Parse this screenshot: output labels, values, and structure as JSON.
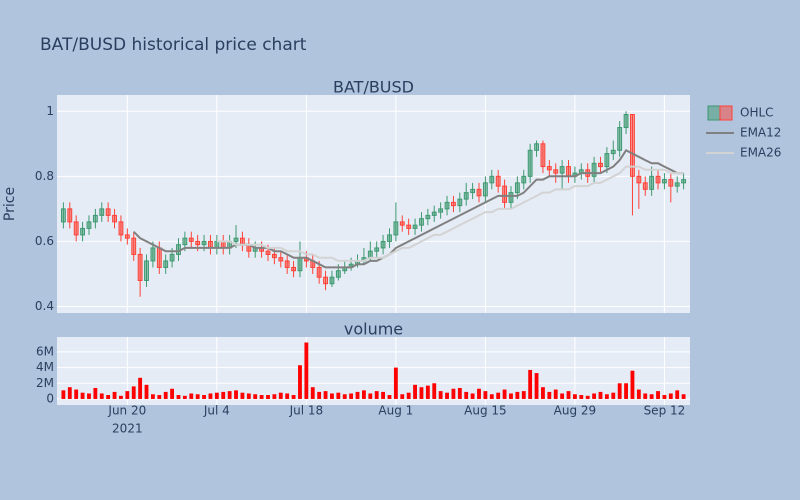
{
  "title": "BAT/BUSD historical price chart",
  "chart_data": [
    {
      "type": "candlestick",
      "title": "BAT/BUSD",
      "ylabel": "Price",
      "name": "OHLC",
      "increasing_color": "#3d9970",
      "decreasing_color": "#ff4136",
      "x": [
        "2021-06-10",
        "2021-06-11",
        "2021-06-12",
        "2021-06-13",
        "2021-06-14",
        "2021-06-15",
        "2021-06-16",
        "2021-06-17",
        "2021-06-18",
        "2021-06-19",
        "2021-06-20",
        "2021-06-21",
        "2021-06-22",
        "2021-06-23",
        "2021-06-24",
        "2021-06-25",
        "2021-06-26",
        "2021-06-27",
        "2021-06-28",
        "2021-06-29",
        "2021-06-30",
        "2021-07-01",
        "2021-07-02",
        "2021-07-03",
        "2021-07-04",
        "2021-07-05",
        "2021-07-06",
        "2021-07-07",
        "2021-07-08",
        "2021-07-09",
        "2021-07-10",
        "2021-07-11",
        "2021-07-12",
        "2021-07-13",
        "2021-07-14",
        "2021-07-15",
        "2021-07-16",
        "2021-07-17",
        "2021-07-18",
        "2021-07-19",
        "2021-07-20",
        "2021-07-21",
        "2021-07-22",
        "2021-07-23",
        "2021-07-24",
        "2021-07-25",
        "2021-07-26",
        "2021-07-27",
        "2021-07-28",
        "2021-07-29",
        "2021-07-30",
        "2021-07-31",
        "2021-08-01",
        "2021-08-02",
        "2021-08-03",
        "2021-08-04",
        "2021-08-05",
        "2021-08-06",
        "2021-08-07",
        "2021-08-08",
        "2021-08-09",
        "2021-08-10",
        "2021-08-11",
        "2021-08-12",
        "2021-08-13",
        "2021-08-14",
        "2021-08-15",
        "2021-08-16",
        "2021-08-17",
        "2021-08-18",
        "2021-08-19",
        "2021-08-20",
        "2021-08-21",
        "2021-08-22",
        "2021-08-23",
        "2021-08-24",
        "2021-08-25",
        "2021-08-26",
        "2021-08-27",
        "2021-08-28",
        "2021-08-29",
        "2021-08-30",
        "2021-08-31",
        "2021-09-01",
        "2021-09-02",
        "2021-09-03",
        "2021-09-04",
        "2021-09-05",
        "2021-09-06",
        "2021-09-07",
        "2021-09-08",
        "2021-09-09",
        "2021-09-10",
        "2021-09-11",
        "2021-09-12",
        "2021-09-13",
        "2021-09-14",
        "2021-09-15"
      ],
      "open": [
        0.66,
        0.7,
        0.66,
        0.62,
        0.64,
        0.66,
        0.68,
        0.7,
        0.68,
        0.66,
        0.62,
        0.61,
        0.56,
        0.48,
        0.54,
        0.58,
        0.52,
        0.54,
        0.56,
        0.59,
        0.61,
        0.6,
        0.59,
        0.6,
        0.58,
        0.6,
        0.58,
        0.6,
        0.61,
        0.59,
        0.57,
        0.58,
        0.57,
        0.56,
        0.55,
        0.54,
        0.52,
        0.51,
        0.55,
        0.54,
        0.52,
        0.49,
        0.47,
        0.49,
        0.51,
        0.52,
        0.53,
        0.54,
        0.55,
        0.57,
        0.58,
        0.6,
        0.62,
        0.66,
        0.65,
        0.64,
        0.65,
        0.67,
        0.68,
        0.69,
        0.7,
        0.72,
        0.71,
        0.73,
        0.75,
        0.76,
        0.74,
        0.78,
        0.8,
        0.77,
        0.72,
        0.75,
        0.78,
        0.8,
        0.88,
        0.9,
        0.83,
        0.82,
        0.81,
        0.83,
        0.8,
        0.81,
        0.82,
        0.8,
        0.84,
        0.83,
        0.87,
        0.88,
        0.95,
        0.99,
        0.8,
        0.78,
        0.76,
        0.8,
        0.78,
        0.79,
        0.77,
        0.78
      ],
      "high": [
        0.72,
        0.72,
        0.68,
        0.66,
        0.68,
        0.7,
        0.72,
        0.72,
        0.7,
        0.68,
        0.64,
        0.63,
        0.58,
        0.56,
        0.6,
        0.6,
        0.56,
        0.58,
        0.61,
        0.63,
        0.63,
        0.62,
        0.62,
        0.62,
        0.62,
        0.62,
        0.62,
        0.65,
        0.63,
        0.61,
        0.6,
        0.6,
        0.59,
        0.58,
        0.57,
        0.56,
        0.54,
        0.6,
        0.57,
        0.56,
        0.54,
        0.51,
        0.51,
        0.53,
        0.54,
        0.55,
        0.56,
        0.58,
        0.6,
        0.6,
        0.62,
        0.64,
        0.72,
        0.68,
        0.67,
        0.67,
        0.69,
        0.7,
        0.71,
        0.72,
        0.74,
        0.74,
        0.75,
        0.78,
        0.78,
        0.78,
        0.8,
        0.82,
        0.82,
        0.79,
        0.77,
        0.8,
        0.82,
        0.9,
        0.91,
        0.91,
        0.85,
        0.84,
        0.85,
        0.85,
        0.83,
        0.84,
        0.84,
        0.86,
        0.86,
        0.89,
        0.91,
        0.97,
        1.0,
        0.99,
        0.82,
        0.8,
        0.83,
        0.82,
        0.81,
        0.81,
        0.8,
        0.81
      ],
      "low": [
        0.64,
        0.64,
        0.6,
        0.6,
        0.62,
        0.64,
        0.66,
        0.66,
        0.64,
        0.6,
        0.59,
        0.54,
        0.43,
        0.46,
        0.52,
        0.5,
        0.5,
        0.52,
        0.54,
        0.57,
        0.58,
        0.57,
        0.57,
        0.56,
        0.56,
        0.56,
        0.56,
        0.58,
        0.57,
        0.55,
        0.55,
        0.55,
        0.54,
        0.53,
        0.52,
        0.5,
        0.49,
        0.49,
        0.52,
        0.5,
        0.47,
        0.45,
        0.46,
        0.48,
        0.5,
        0.51,
        0.52,
        0.53,
        0.54,
        0.55,
        0.56,
        0.58,
        0.6,
        0.63,
        0.62,
        0.62,
        0.63,
        0.65,
        0.66,
        0.67,
        0.68,
        0.69,
        0.69,
        0.71,
        0.73,
        0.72,
        0.72,
        0.76,
        0.75,
        0.7,
        0.7,
        0.73,
        0.76,
        0.78,
        0.86,
        0.81,
        0.8,
        0.78,
        0.76,
        0.78,
        0.78,
        0.79,
        0.78,
        0.78,
        0.81,
        0.81,
        0.85,
        0.86,
        0.93,
        0.68,
        0.7,
        0.74,
        0.74,
        0.76,
        0.76,
        0.72,
        0.75,
        0.76
      ],
      "close": [
        0.7,
        0.66,
        0.62,
        0.64,
        0.66,
        0.68,
        0.7,
        0.68,
        0.66,
        0.62,
        0.61,
        0.56,
        0.48,
        0.54,
        0.58,
        0.52,
        0.54,
        0.56,
        0.59,
        0.61,
        0.6,
        0.59,
        0.6,
        0.58,
        0.6,
        0.58,
        0.6,
        0.61,
        0.59,
        0.57,
        0.58,
        0.57,
        0.56,
        0.55,
        0.54,
        0.52,
        0.51,
        0.55,
        0.54,
        0.52,
        0.49,
        0.47,
        0.49,
        0.51,
        0.52,
        0.53,
        0.54,
        0.55,
        0.57,
        0.58,
        0.6,
        0.62,
        0.66,
        0.65,
        0.64,
        0.65,
        0.67,
        0.68,
        0.69,
        0.7,
        0.72,
        0.71,
        0.73,
        0.75,
        0.76,
        0.74,
        0.78,
        0.8,
        0.77,
        0.72,
        0.75,
        0.78,
        0.8,
        0.88,
        0.9,
        0.83,
        0.82,
        0.81,
        0.83,
        0.8,
        0.81,
        0.82,
        0.8,
        0.84,
        0.83,
        0.87,
        0.88,
        0.95,
        0.99,
        0.8,
        0.78,
        0.76,
        0.8,
        0.78,
        0.79,
        0.77,
        0.78,
        0.79
      ],
      "series": [
        {
          "name": "EMA12",
          "color": "#808080",
          "values": [
            null,
            null,
            null,
            null,
            null,
            null,
            null,
            null,
            null,
            null,
            null,
            0.63,
            0.61,
            0.6,
            0.59,
            0.58,
            0.57,
            0.57,
            0.57,
            0.58,
            0.58,
            0.58,
            0.58,
            0.58,
            0.58,
            0.58,
            0.58,
            0.59,
            0.59,
            0.59,
            0.58,
            0.58,
            0.58,
            0.57,
            0.57,
            0.56,
            0.55,
            0.55,
            0.55,
            0.54,
            0.53,
            0.52,
            0.52,
            0.52,
            0.52,
            0.52,
            0.53,
            0.53,
            0.54,
            0.54,
            0.55,
            0.56,
            0.58,
            0.59,
            0.6,
            0.61,
            0.62,
            0.63,
            0.64,
            0.65,
            0.66,
            0.67,
            0.68,
            0.69,
            0.7,
            0.71,
            0.72,
            0.73,
            0.74,
            0.74,
            0.74,
            0.74,
            0.75,
            0.77,
            0.79,
            0.79,
            0.8,
            0.8,
            0.8,
            0.8,
            0.8,
            0.81,
            0.81,
            0.81,
            0.81,
            0.82,
            0.83,
            0.85,
            0.88,
            0.87,
            0.86,
            0.85,
            0.84,
            0.84,
            0.83,
            0.82,
            0.81,
            0.81
          ]
        },
        {
          "name": "EMA26",
          "color": "#d3d3d3",
          "values": [
            null,
            null,
            null,
            null,
            null,
            null,
            null,
            null,
            null,
            null,
            null,
            null,
            null,
            null,
            null,
            null,
            null,
            null,
            null,
            null,
            null,
            null,
            null,
            null,
            0.6,
            0.6,
            0.6,
            0.59,
            0.59,
            0.59,
            0.59,
            0.59,
            0.58,
            0.58,
            0.58,
            0.57,
            0.57,
            0.57,
            0.56,
            0.56,
            0.55,
            0.55,
            0.55,
            0.54,
            0.54,
            0.54,
            0.54,
            0.54,
            0.55,
            0.55,
            0.55,
            0.56,
            0.57,
            0.58,
            0.58,
            0.59,
            0.6,
            0.61,
            0.62,
            0.62,
            0.63,
            0.64,
            0.65,
            0.66,
            0.67,
            0.68,
            0.69,
            0.69,
            0.7,
            0.7,
            0.7,
            0.71,
            0.72,
            0.73,
            0.74,
            0.75,
            0.75,
            0.76,
            0.76,
            0.76,
            0.77,
            0.77,
            0.77,
            0.78,
            0.78,
            0.79,
            0.8,
            0.81,
            0.83,
            0.83,
            0.83,
            0.82,
            0.82,
            0.82,
            0.82,
            0.81,
            0.81,
            0.81
          ]
        }
      ],
      "xlim": [
        "2021-06-09",
        "2021-09-16"
      ],
      "ylim": [
        0.38,
        1.05
      ],
      "yticks": [
        0.4,
        0.6,
        0.8,
        1
      ],
      "grid": true
    },
    {
      "type": "bar",
      "title": "volume",
      "color": "#ff0000",
      "x": [
        "2021-06-10",
        "2021-06-11",
        "2021-06-12",
        "2021-06-13",
        "2021-06-14",
        "2021-06-15",
        "2021-06-16",
        "2021-06-17",
        "2021-06-18",
        "2021-06-19",
        "2021-06-20",
        "2021-06-21",
        "2021-06-22",
        "2021-06-23",
        "2021-06-24",
        "2021-06-25",
        "2021-06-26",
        "2021-06-27",
        "2021-06-28",
        "2021-06-29",
        "2021-06-30",
        "2021-07-01",
        "2021-07-02",
        "2021-07-03",
        "2021-07-04",
        "2021-07-05",
        "2021-07-06",
        "2021-07-07",
        "2021-07-08",
        "2021-07-09",
        "2021-07-10",
        "2021-07-11",
        "2021-07-12",
        "2021-07-13",
        "2021-07-14",
        "2021-07-15",
        "2021-07-16",
        "2021-07-17",
        "2021-07-18",
        "2021-07-19",
        "2021-07-20",
        "2021-07-21",
        "2021-07-22",
        "2021-07-23",
        "2021-07-24",
        "2021-07-25",
        "2021-07-26",
        "2021-07-27",
        "2021-07-28",
        "2021-07-29",
        "2021-07-30",
        "2021-07-31",
        "2021-08-01",
        "2021-08-02",
        "2021-08-03",
        "2021-08-04",
        "2021-08-05",
        "2021-08-06",
        "2021-08-07",
        "2021-08-08",
        "2021-08-09",
        "2021-08-10",
        "2021-08-11",
        "2021-08-12",
        "2021-08-13",
        "2021-08-14",
        "2021-08-15",
        "2021-08-16",
        "2021-08-17",
        "2021-08-18",
        "2021-08-19",
        "2021-08-20",
        "2021-08-21",
        "2021-08-22",
        "2021-08-23",
        "2021-08-24",
        "2021-08-25",
        "2021-08-26",
        "2021-08-27",
        "2021-08-28",
        "2021-08-29",
        "2021-08-30",
        "2021-08-31",
        "2021-09-01",
        "2021-09-02",
        "2021-09-03",
        "2021-09-04",
        "2021-09-05",
        "2021-09-06",
        "2021-09-07",
        "2021-09-08",
        "2021-09-09",
        "2021-09-10",
        "2021-09-11",
        "2021-09-12",
        "2021-09-13",
        "2021-09-14",
        "2021-09-15"
      ],
      "values": [
        1100000,
        1500000,
        1200000,
        800000,
        700000,
        1400000,
        700000,
        500000,
        900000,
        400000,
        1000000,
        1600000,
        2700000,
        1800000,
        600000,
        500000,
        900000,
        1300000,
        500000,
        400000,
        700000,
        600000,
        500000,
        700000,
        800000,
        900000,
        1000000,
        1100000,
        800000,
        700000,
        600000,
        500000,
        500000,
        600000,
        800000,
        700000,
        500000,
        4300000,
        7200000,
        1500000,
        900000,
        1000000,
        700000,
        800000,
        600000,
        700000,
        900000,
        1100000,
        700000,
        1000000,
        900000,
        500000,
        4000000,
        600000,
        800000,
        1800000,
        1500000,
        1700000,
        2000000,
        1000000,
        800000,
        1300000,
        1400000,
        900000,
        700000,
        1300000,
        1000000,
        600000,
        800000,
        1200000,
        700000,
        900000,
        1000000,
        3700000,
        3300000,
        1500000,
        900000,
        1200000,
        700000,
        1000000,
        600000,
        500000,
        400000,
        700000,
        900000,
        600000,
        800000,
        2000000,
        2000000,
        3600000,
        1200000,
        700000,
        600000,
        1000000,
        500000,
        700000,
        1100000,
        600000
      ],
      "xlim": [
        "2021-06-09",
        "2021-09-16"
      ],
      "xticks": [
        {
          "value": "2021-06-20",
          "label": "Jun 20"
        },
        {
          "value": "2021-07-04",
          "label": "Jul 4"
        },
        {
          "value": "2021-07-18",
          "label": "Jul 18"
        },
        {
          "value": "2021-08-01",
          "label": "Aug 1"
        },
        {
          "value": "2021-08-15",
          "label": "Aug 15"
        },
        {
          "value": "2021-08-29",
          "label": "Aug 29"
        },
        {
          "value": "2021-09-12",
          "label": "Sep 12"
        }
      ],
      "x_year": "2021",
      "ylim": [
        -770000,
        7900000
      ],
      "yticks": [
        0,
        {
          "value": 2000000,
          "label": "2M"
        },
        {
          "value": 4000000,
          "label": "4M"
        },
        {
          "value": 6000000,
          "label": "6M"
        }
      ],
      "grid": true
    }
  ]
}
